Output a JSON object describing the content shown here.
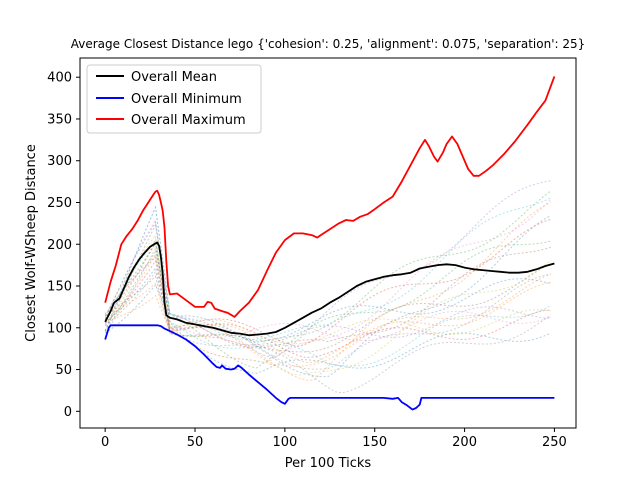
{
  "chart_data": {
    "type": "line",
    "title": "Average Closest Distance lego {'cohesion': 0.25, 'alignment': 0.075, 'separation': 25}",
    "xlabel": "Per 100 Ticks",
    "ylabel": "Closest Wolf-WSheep Distance",
    "xlim": [
      -14,
      262
    ],
    "ylim": [
      -20,
      423
    ],
    "xticks": [
      0,
      50,
      100,
      150,
      200,
      250
    ],
    "yticks": [
      0,
      50,
      100,
      150,
      200,
      250,
      300,
      350,
      400
    ],
    "grid": false,
    "legend_position": "top-left",
    "series": [
      {
        "name": "Overall Mean",
        "color": "#000000",
        "style": "solid",
        "points": [
          [
            0,
            107
          ],
          [
            3,
            120
          ],
          [
            5,
            130
          ],
          [
            8,
            135
          ],
          [
            10,
            145
          ],
          [
            13,
            160
          ],
          [
            16,
            172
          ],
          [
            19,
            182
          ],
          [
            22,
            190
          ],
          [
            25,
            197
          ],
          [
            28,
            201
          ],
          [
            29,
            202
          ],
          [
            30,
            198
          ],
          [
            31,
            185
          ],
          [
            32,
            165
          ],
          [
            33,
            130
          ],
          [
            34,
            115
          ],
          [
            36,
            112
          ],
          [
            40,
            110
          ],
          [
            45,
            106
          ],
          [
            50,
            104
          ],
          [
            55,
            102
          ],
          [
            60,
            100
          ],
          [
            65,
            97
          ],
          [
            70,
            94
          ],
          [
            75,
            93
          ],
          [
            80,
            91
          ],
          [
            85,
            92
          ],
          [
            90,
            93
          ],
          [
            95,
            95
          ],
          [
            100,
            100
          ],
          [
            105,
            106
          ],
          [
            110,
            112
          ],
          [
            115,
            118
          ],
          [
            120,
            123
          ],
          [
            125,
            130
          ],
          [
            130,
            136
          ],
          [
            135,
            143
          ],
          [
            140,
            150
          ],
          [
            145,
            155
          ],
          [
            150,
            158
          ],
          [
            155,
            161
          ],
          [
            160,
            163
          ],
          [
            165,
            164
          ],
          [
            170,
            166
          ],
          [
            175,
            171
          ],
          [
            180,
            173
          ],
          [
            185,
            175
          ],
          [
            190,
            176
          ],
          [
            195,
            175
          ],
          [
            200,
            172
          ],
          [
            205,
            170
          ],
          [
            210,
            169
          ],
          [
            215,
            168
          ],
          [
            220,
            167
          ],
          [
            225,
            166
          ],
          [
            230,
            166
          ],
          [
            235,
            167
          ],
          [
            240,
            170
          ],
          [
            245,
            174
          ],
          [
            250,
            177
          ]
        ]
      },
      {
        "name": "Overall Minimum",
        "color": "#0000ff",
        "style": "solid",
        "points": [
          [
            0,
            86
          ],
          [
            1,
            93
          ],
          [
            2,
            100
          ],
          [
            3,
            103
          ],
          [
            5,
            103
          ],
          [
            10,
            103
          ],
          [
            20,
            103
          ],
          [
            29,
            103
          ],
          [
            31,
            102
          ],
          [
            33,
            99
          ],
          [
            36,
            96
          ],
          [
            40,
            92
          ],
          [
            45,
            86
          ],
          [
            50,
            78
          ],
          [
            55,
            68
          ],
          [
            60,
            57
          ],
          [
            62,
            53
          ],
          [
            64,
            52
          ],
          [
            65,
            55
          ],
          [
            67,
            51
          ],
          [
            70,
            50
          ],
          [
            72,
            51
          ],
          [
            74,
            55
          ],
          [
            76,
            52
          ],
          [
            80,
            44
          ],
          [
            85,
            35
          ],
          [
            90,
            26
          ],
          [
            95,
            16
          ],
          [
            98,
            11
          ],
          [
            100,
            9
          ],
          [
            102,
            15
          ],
          [
            103,
            16
          ],
          [
            110,
            16
          ],
          [
            120,
            16
          ],
          [
            130,
            16
          ],
          [
            140,
            16
          ],
          [
            150,
            16
          ],
          [
            155,
            16
          ],
          [
            160,
            15
          ],
          [
            163,
            16
          ],
          [
            165,
            11
          ],
          [
            168,
            7
          ],
          [
            171,
            2
          ],
          [
            173,
            4
          ],
          [
            175,
            8
          ],
          [
            176,
            16
          ],
          [
            180,
            16
          ],
          [
            200,
            16
          ],
          [
            225,
            16
          ],
          [
            250,
            16
          ]
        ]
      },
      {
        "name": "Overall Maximum",
        "color": "#ff0000",
        "style": "solid",
        "points": [
          [
            0,
            130
          ],
          [
            3,
            155
          ],
          [
            6,
            175
          ],
          [
            9,
            200
          ],
          [
            12,
            210
          ],
          [
            15,
            218
          ],
          [
            18,
            228
          ],
          [
            21,
            240
          ],
          [
            24,
            250
          ],
          [
            27,
            260
          ],
          [
            28,
            263
          ],
          [
            29,
            264
          ],
          [
            30,
            259
          ],
          [
            31,
            250
          ],
          [
            32,
            240
          ],
          [
            33,
            220
          ],
          [
            34,
            180
          ],
          [
            35,
            150
          ],
          [
            36,
            140
          ],
          [
            40,
            141
          ],
          [
            45,
            133
          ],
          [
            50,
            125
          ],
          [
            55,
            125
          ],
          [
            57,
            131
          ],
          [
            59,
            130
          ],
          [
            61,
            123
          ],
          [
            65,
            120
          ],
          [
            68,
            118
          ],
          [
            72,
            113
          ],
          [
            75,
            120
          ],
          [
            80,
            130
          ],
          [
            85,
            145
          ],
          [
            90,
            168
          ],
          [
            95,
            190
          ],
          [
            100,
            205
          ],
          [
            105,
            213
          ],
          [
            110,
            213
          ],
          [
            115,
            211
          ],
          [
            118,
            208
          ],
          [
            120,
            211
          ],
          [
            125,
            218
          ],
          [
            130,
            225
          ],
          [
            134,
            229
          ],
          [
            138,
            228
          ],
          [
            142,
            233
          ],
          [
            146,
            236
          ],
          [
            150,
            242
          ],
          [
            155,
            250
          ],
          [
            160,
            257
          ],
          [
            165,
            275
          ],
          [
            170,
            295
          ],
          [
            175,
            315
          ],
          [
            178,
            325
          ],
          [
            180,
            318
          ],
          [
            183,
            305
          ],
          [
            185,
            299
          ],
          [
            188,
            310
          ],
          [
            190,
            320
          ],
          [
            193,
            329
          ],
          [
            196,
            320
          ],
          [
            199,
            305
          ],
          [
            202,
            290
          ],
          [
            205,
            282
          ],
          [
            208,
            282
          ],
          [
            212,
            288
          ],
          [
            216,
            295
          ],
          [
            222,
            308
          ],
          [
            228,
            323
          ],
          [
            235,
            343
          ],
          [
            240,
            358
          ],
          [
            245,
            372
          ],
          [
            250,
            401
          ]
        ]
      }
    ]
  }
}
